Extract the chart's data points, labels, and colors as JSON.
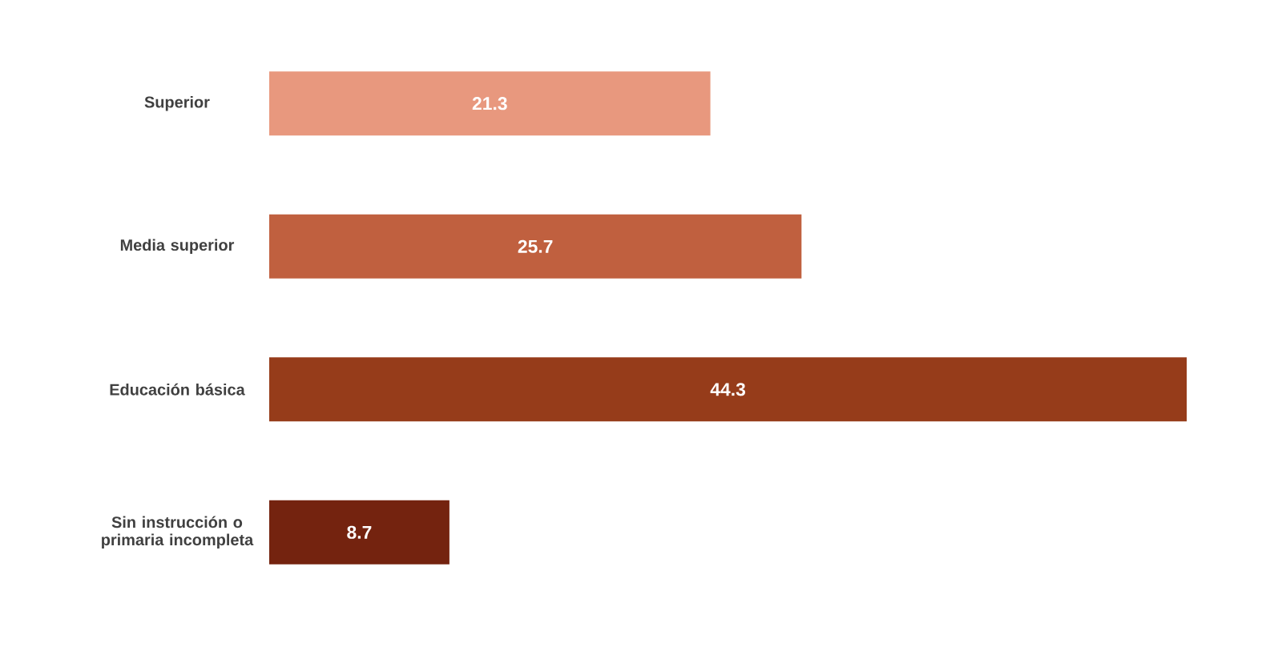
{
  "chart_data": {
    "type": "bar",
    "orientation": "horizontal",
    "data_labels": true,
    "categories": [
      "Superior",
      "Media superior",
      "Educación básica",
      "Sin instrucción o primaria incompleta"
    ],
    "values": [
      21.3,
      25.7,
      44.3,
      8.7
    ],
    "colors": [
      "#e8987e",
      "#c0603f",
      "#963c1a",
      "#74230f"
    ]
  }
}
